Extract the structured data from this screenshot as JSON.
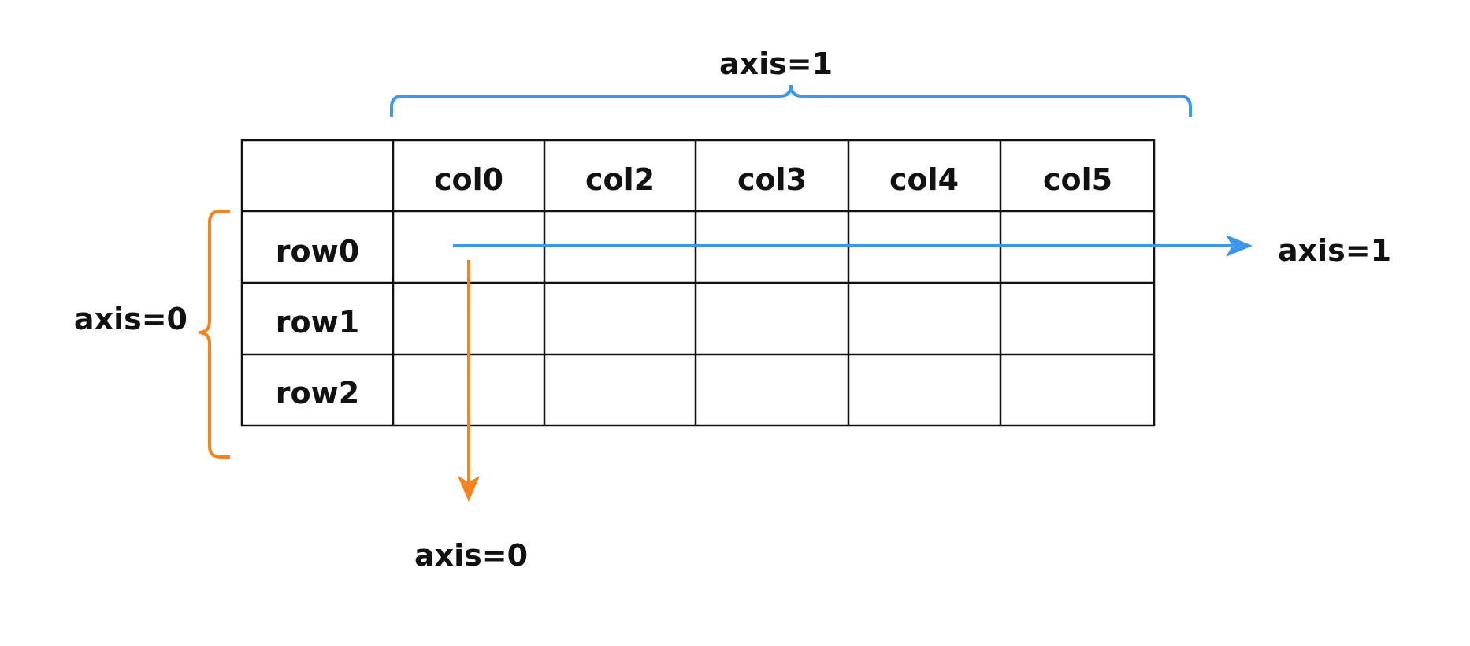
{
  "table": {
    "columns": [
      "col0",
      "col2",
      "col3",
      "col4",
      "col5"
    ],
    "rows": [
      "row0",
      "row1",
      "row2"
    ]
  },
  "labels": {
    "top_brace": "axis=1",
    "side_brace": "axis=0",
    "horizontal_arrow": "axis=1",
    "vertical_arrow": "axis=0"
  },
  "colors": {
    "axis1": "#3d96e8",
    "axis0": "#f5831f",
    "grid": "#111111"
  }
}
